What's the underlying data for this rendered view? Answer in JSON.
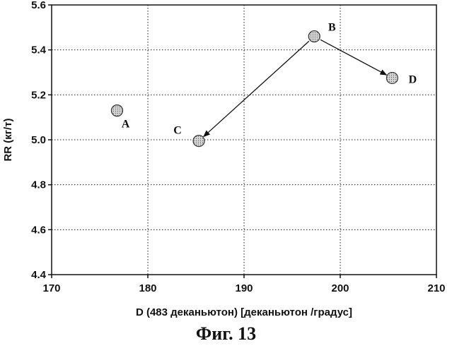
{
  "caption": "Фиг. 13",
  "chart_data": {
    "type": "scatter",
    "xlabel": "D (483 деканьютон) [деканьютон /градус]",
    "ylabel": "RR (кг/т)",
    "xlim": [
      170,
      210
    ],
    "ylim": [
      4.4,
      5.6
    ],
    "xticks": [
      170,
      180,
      190,
      200,
      210
    ],
    "yticks": [
      4.4,
      4.6,
      4.8,
      5.0,
      5.2,
      5.4,
      5.6
    ],
    "ytick_labels": [
      "4.4",
      "4.6",
      "4.8",
      "5.0",
      "5.2",
      "5.4",
      "5.6"
    ],
    "grid": true,
    "points": [
      {
        "label": "A",
        "x": 176.8,
        "y": 5.13
      },
      {
        "label": "B",
        "x": 197.3,
        "y": 5.46
      },
      {
        "label": "C",
        "x": 185.3,
        "y": 4.995
      },
      {
        "label": "D",
        "x": 205.4,
        "y": 5.275
      }
    ],
    "arrows": [
      {
        "from": "B",
        "to": "C"
      },
      {
        "from": "B",
        "to": "D"
      }
    ],
    "marker_color": "#bdbdbd"
  }
}
